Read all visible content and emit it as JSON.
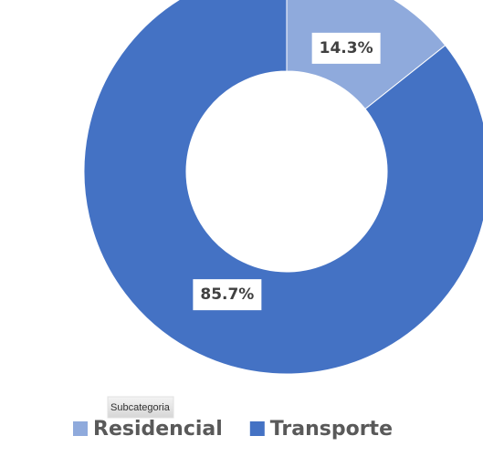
{
  "chart_data": {
    "type": "donut",
    "legend_title": "Subcategoria",
    "categories": [
      "Residencial",
      "Transporte"
    ],
    "values": [
      14.3,
      85.7
    ],
    "value_labels": [
      "14.3%",
      "85.7%"
    ],
    "colors": [
      "#8faadc",
      "#4472c4"
    ],
    "legend": "bottom"
  }
}
